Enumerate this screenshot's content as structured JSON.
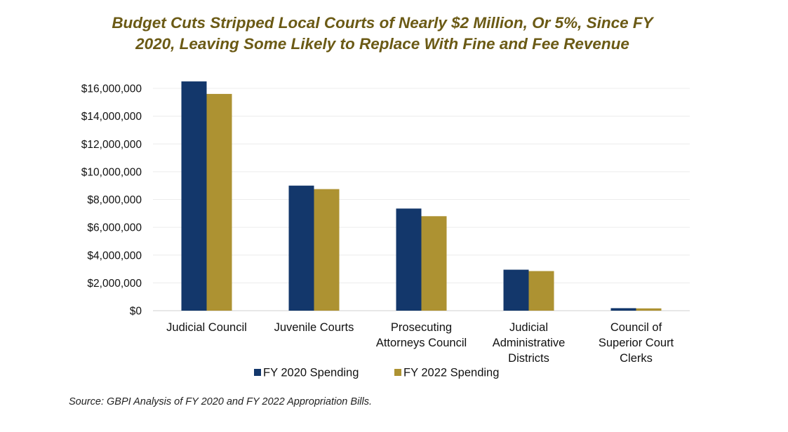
{
  "title": {
    "line1": "Budget Cuts Stripped Local Courts of Nearly $2 Million, Or 5%, Since FY",
    "line2": "2020, Leaving Some Likely to Replace With Fine and Fee Revenue"
  },
  "source": "Source: GBPI Analysis of FY 2020 and FY 2022 Appropriation Bills.",
  "colors": {
    "series_1": "#13376b",
    "series_2": "#ad9232",
    "title": "#6b5a15",
    "grid": "#ececec",
    "axis": "#d0d0d0"
  },
  "chart_data": {
    "type": "bar",
    "title": "Budget Cuts Stripped Local Courts of Nearly $2 Million, Or 5%, Since FY 2020, Leaving Some Likely to Replace With Fine and Fee Revenue",
    "xlabel": "",
    "ylabel": "",
    "ylim": [
      0,
      16000000
    ],
    "yticks": [
      0,
      2000000,
      4000000,
      6000000,
      8000000,
      10000000,
      12000000,
      14000000,
      16000000
    ],
    "ytick_labels": [
      "$0",
      "$2,000,000",
      "$4,000,000",
      "$6,000,000",
      "$8,000,000",
      "$10,000,000",
      "$12,000,000",
      "$14,000,000",
      "$16,000,000"
    ],
    "grid": true,
    "legend_position": "bottom",
    "categories": [
      [
        "Judicial Council"
      ],
      [
        "Juvenile Courts"
      ],
      [
        "Prosecuting",
        "Attorneys Council"
      ],
      [
        "Judicial",
        "Administrative",
        "Districts"
      ],
      [
        "Council of",
        "Superior Court",
        "Clerks"
      ]
    ],
    "series": [
      {
        "name": "FY 2020 Spending",
        "values": [
          16500000,
          9000000,
          7350000,
          2950000,
          180000
        ]
      },
      {
        "name": "FY 2022 Spending",
        "values": [
          15600000,
          8750000,
          6800000,
          2850000,
          165000
        ]
      }
    ]
  }
}
